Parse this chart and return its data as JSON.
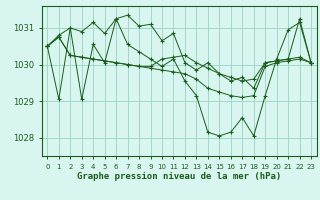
{
  "title": "Graphe pression niveau de la mer (hPa)",
  "background_color": "#d8f5f0",
  "grid_color": "#a0d8c8",
  "line_color": "#1a5c1a",
  "xlim": [
    -0.5,
    23.5
  ],
  "ylim": [
    1027.5,
    1031.6
  ],
  "yticks": [
    1028,
    1029,
    1030,
    1031
  ],
  "xticks": [
    0,
    1,
    2,
    3,
    4,
    5,
    6,
    7,
    8,
    9,
    10,
    11,
    12,
    13,
    14,
    15,
    16,
    17,
    18,
    19,
    20,
    21,
    22,
    23
  ],
  "series": [
    [
      1030.5,
      1030.8,
      1031.0,
      1030.9,
      1031.15,
      1030.85,
      1031.25,
      1031.35,
      1031.05,
      1031.1,
      1030.65,
      1030.85,
      1030.05,
      1029.85,
      1030.05,
      1029.75,
      1029.55,
      1029.65,
      1029.35,
      1030.05,
      1030.1,
      1030.15,
      1031.25,
      1030.05
    ],
    [
      1030.5,
      1029.05,
      1031.0,
      1029.05,
      1030.55,
      1030.05,
      1031.25,
      1030.55,
      1030.35,
      1030.15,
      1029.95,
      1030.15,
      1029.55,
      1029.15,
      1028.15,
      1028.05,
      1028.15,
      1028.55,
      1028.05,
      1029.15,
      1030.15,
      1030.95,
      1031.15,
      1030.05
    ],
    [
      1030.5,
      1030.75,
      1030.25,
      1030.2,
      1030.15,
      1030.1,
      1030.05,
      1030.0,
      1029.95,
      1029.95,
      1030.15,
      1030.2,
      1030.25,
      1030.05,
      1029.9,
      1029.75,
      1029.65,
      1029.55,
      1029.6,
      1030.05,
      1030.1,
      1030.15,
      1030.2,
      1030.05
    ],
    [
      1030.5,
      1030.75,
      1030.25,
      1030.2,
      1030.15,
      1030.1,
      1030.05,
      1030.0,
      1029.95,
      1029.9,
      1029.85,
      1029.8,
      1029.75,
      1029.6,
      1029.35,
      1029.25,
      1029.15,
      1029.1,
      1029.15,
      1029.95,
      1030.05,
      1030.1,
      1030.15,
      1030.05
    ]
  ]
}
